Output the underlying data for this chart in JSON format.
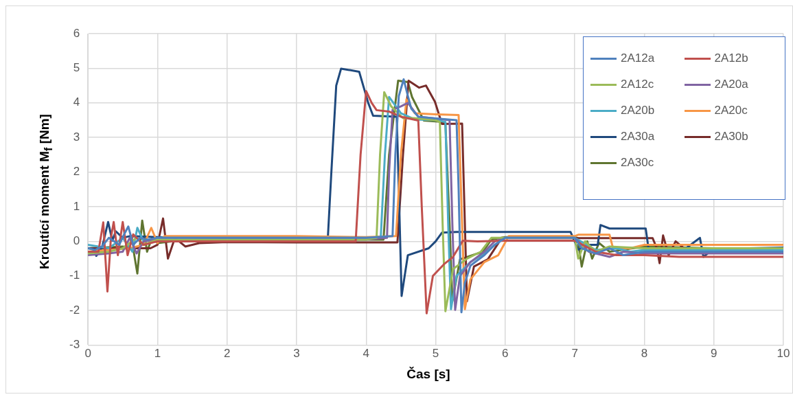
{
  "chart_data": {
    "type": "line",
    "xlabel": "Čas [s]",
    "ylabel": "Kroutící moment M$_{f}$ [Nm]",
    "xlim": [
      0,
      10
    ],
    "xticks": [
      0,
      1,
      2,
      3,
      4,
      5,
      6,
      7,
      8,
      9,
      10
    ],
    "ylim": [
      -3,
      6
    ],
    "yticks": [
      -3,
      -2,
      -1,
      0,
      1,
      2,
      3,
      4,
      5,
      6
    ],
    "grid": true,
    "legend": "top right",
    "marker": "none",
    "line_style": "solid",
    "series": [
      {
        "name": "2A12a",
        "color": "#4f81bd",
        "x": [
          0,
          0.1,
          0.2,
          0.3,
          0.45,
          0.52,
          0.58,
          0.65,
          0.75,
          0.85,
          1.0,
          1.5,
          2,
          3,
          4,
          4.38,
          4.42,
          4.47,
          4.54,
          4.6,
          4.65,
          4.75,
          5.0,
          5.3,
          5.33,
          5.37,
          5.42,
          5.5,
          5.7,
          5.85,
          6,
          7,
          7.1,
          7.3,
          7.5,
          7.7,
          8,
          8.5,
          9,
          9.5,
          10
        ],
        "values": [
          -0.2,
          -0.25,
          -0.15,
          0.1,
          -0.1,
          0.2,
          0.43,
          -0.1,
          0.1,
          0.05,
          0.1,
          0.1,
          0.1,
          0.1,
          0.1,
          0.15,
          2.5,
          4.2,
          4.68,
          4.2,
          3.83,
          3.6,
          3.55,
          3.5,
          1.5,
          -2.05,
          -1.2,
          -0.7,
          -0.4,
          -0.1,
          0.1,
          0.1,
          -0.2,
          -0.35,
          -0.2,
          -0.4,
          -0.3,
          -0.3,
          -0.3,
          -0.3,
          -0.3
        ]
      },
      {
        "name": "2A12b",
        "color": "#c0504d",
        "x": [
          0,
          0.15,
          0.22,
          0.28,
          0.33,
          0.37,
          0.43,
          0.5,
          0.57,
          0.65,
          0.8,
          1.0,
          1.5,
          2,
          3,
          3.85,
          3.92,
          4.0,
          4.08,
          4.15,
          4.33,
          4.5,
          4.75,
          4.8,
          4.87,
          4.96,
          5.12,
          5.25,
          5.39,
          5.6,
          6,
          7,
          7.3,
          7.6,
          8,
          8.5,
          9,
          9.5,
          10
        ],
        "values": [
          -0.3,
          -0.3,
          0.55,
          -1.45,
          0.1,
          0.56,
          -0.4,
          0.56,
          -0.4,
          0.2,
          -0.1,
          0.0,
          0.0,
          0.0,
          0.0,
          0.0,
          2.5,
          4.34,
          4.0,
          3.79,
          3.75,
          3.6,
          3.49,
          1.0,
          -2.08,
          -1.0,
          -0.66,
          -0.45,
          0.02,
          0.0,
          0.02,
          0.02,
          -0.3,
          -0.4,
          -0.4,
          -0.45,
          -0.45,
          -0.45,
          -0.45
        ]
      },
      {
        "name": "2A12c",
        "color": "#9bbb59",
        "x": [
          0,
          0.3,
          0.5,
          0.7,
          0.8,
          1.0,
          2,
          3,
          4,
          4.15,
          4.2,
          4.26,
          4.36,
          4.53,
          4.69,
          5.0,
          5.06,
          5.1,
          5.14,
          5.25,
          5.45,
          5.65,
          5.8,
          6,
          7,
          7.05,
          7.15,
          7.3,
          7.5,
          8,
          9,
          10
        ],
        "values": [
          -0.35,
          -0.3,
          -0.2,
          0.1,
          -0.1,
          0.05,
          0.05,
          0.05,
          0.05,
          0.1,
          2.5,
          4.31,
          3.9,
          3.56,
          3.56,
          3.5,
          3.45,
          0.5,
          -2.02,
          -0.8,
          -0.5,
          -0.3,
          0.1,
          0.1,
          0.1,
          -0.5,
          0.0,
          -0.3,
          -0.15,
          -0.2,
          -0.2,
          -0.2
        ]
      },
      {
        "name": "2A20a",
        "color": "#8064a2",
        "x": [
          0,
          0.3,
          0.5,
          0.6,
          0.7,
          0.8,
          1.0,
          2,
          3,
          4,
          4.3,
          4.33,
          4.38,
          4.5,
          4.6,
          4.75,
          5.0,
          5.2,
          5.24,
          5.28,
          5.35,
          5.5,
          5.7,
          5.85,
          6,
          7,
          7.2,
          7.5,
          7.7,
          8,
          9,
          10
        ],
        "values": [
          -0.4,
          -0.35,
          -0.3,
          0.1,
          -0.35,
          0.0,
          0.05,
          0.05,
          0.05,
          0.05,
          0.1,
          2.0,
          3.8,
          3.9,
          4.0,
          3.6,
          3.55,
          3.5,
          0.5,
          -1.98,
          -1.0,
          -0.6,
          -0.3,
          0.0,
          0.1,
          0.1,
          -0.3,
          -0.45,
          -0.3,
          -0.35,
          -0.35,
          -0.35
        ]
      },
      {
        "name": "2A20b",
        "color": "#4bacc6",
        "x": [
          0,
          0.3,
          0.5,
          0.64,
          0.71,
          0.8,
          1.0,
          2,
          3,
          4,
          4.21,
          4.27,
          4.33,
          4.5,
          4.7,
          5.0,
          5.14,
          5.18,
          5.22,
          5.3,
          5.5,
          5.7,
          5.85,
          6,
          7,
          7.3,
          7.6,
          7.8,
          8,
          9,
          10
        ],
        "values": [
          -0.1,
          -0.2,
          0.1,
          -0.3,
          0.39,
          0.0,
          0.1,
          0.1,
          0.1,
          0.1,
          0.1,
          2.5,
          4.17,
          3.7,
          3.52,
          3.5,
          3.45,
          0.5,
          -1.96,
          -1.0,
          -0.6,
          -0.35,
          -0.1,
          0.1,
          0.1,
          -0.25,
          -0.2,
          -0.3,
          -0.25,
          -0.25,
          -0.25
        ]
      },
      {
        "name": "2A20c",
        "color": "#f79646",
        "x": [
          0,
          0.3,
          0.6,
          0.8,
          0.91,
          1.0,
          1.1,
          2,
          3,
          4,
          4.43,
          4.5,
          4.58,
          4.7,
          5.0,
          5.33,
          5.38,
          5.42,
          5.5,
          5.7,
          5.9,
          6.05,
          7,
          7.05,
          7.5,
          7.55,
          7.8,
          8,
          9,
          10
        ],
        "values": [
          -0.3,
          -0.25,
          -0.2,
          -0.1,
          0.39,
          -0.05,
          0.15,
          0.15,
          0.15,
          0.12,
          0.15,
          2.5,
          4.1,
          3.7,
          3.67,
          3.65,
          0.5,
          -1.96,
          -1.1,
          -0.6,
          -0.4,
          0.15,
          0.15,
          0.19,
          0.19,
          -0.2,
          -0.2,
          -0.1,
          -0.1,
          -0.1
        ]
      },
      {
        "name": "2A30a",
        "color": "#1f497d",
        "x": [
          0,
          0.08,
          0.12,
          0.2,
          0.29,
          0.35,
          0.4,
          0.5,
          0.6,
          1.0,
          2,
          3,
          3.45,
          3.5,
          3.57,
          3.64,
          3.9,
          4.03,
          4.1,
          4.44,
          4.47,
          4.51,
          4.6,
          4.9,
          5.0,
          5.09,
          5.3,
          6,
          6.94,
          7.05,
          7.2,
          7.33,
          7.37,
          7.5,
          8.02,
          8.06,
          8.3,
          8.6,
          8.8,
          8.85,
          9,
          9.5,
          10
        ],
        "values": [
          -0.2,
          -0.22,
          -0.42,
          -0.2,
          0.56,
          0.02,
          0.29,
          0.1,
          0.15,
          0.12,
          0.1,
          0.1,
          0.12,
          2.0,
          4.5,
          4.99,
          4.9,
          4.0,
          3.63,
          3.6,
          1.5,
          -1.58,
          -0.4,
          -0.2,
          0.0,
          0.25,
          0.27,
          0.27,
          0.27,
          -0.24,
          -0.1,
          -0.1,
          0.47,
          0.37,
          0.37,
          -0.2,
          -0.3,
          -0.2,
          0.1,
          -0.45,
          -0.2,
          -0.2,
          -0.18
        ]
      },
      {
        "name": "2A30b",
        "color": "#772c2a",
        "x": [
          0,
          0.5,
          0.9,
          1.0,
          1.08,
          1.15,
          1.25,
          1.4,
          1.6,
          2,
          3,
          4,
          4.45,
          4.53,
          4.61,
          4.76,
          4.86,
          4.99,
          5.09,
          5.38,
          5.42,
          5.45,
          5.55,
          5.75,
          5.95,
          6.05,
          7,
          8.12,
          8.18,
          8.22,
          8.27,
          8.35,
          8.45,
          8.6,
          9,
          10
        ],
        "values": [
          -0.2,
          -0.2,
          -0.2,
          -0.1,
          0.66,
          -0.5,
          0.1,
          -0.15,
          -0.05,
          -0.02,
          -0.03,
          -0.03,
          -0.03,
          2.5,
          4.64,
          4.44,
          4.5,
          4.03,
          3.39,
          3.4,
          0.5,
          -1.73,
          -0.73,
          -0.52,
          0.1,
          0.09,
          0.09,
          0.09,
          -0.2,
          -0.63,
          0.17,
          -0.4,
          0.0,
          -0.25,
          -0.2,
          -0.2
        ]
      },
      {
        "name": "2A30c",
        "color": "#5f7530",
        "x": [
          0,
          0.5,
          0.65,
          0.71,
          0.78,
          0.85,
          0.92,
          1.0,
          1.2,
          2,
          3,
          4,
          4.25,
          4.33,
          4.46,
          4.6,
          4.66,
          4.83,
          5.1,
          5.14,
          5.2,
          5.24,
          5.35,
          5.68,
          5.8,
          6,
          7,
          7.04,
          7.1,
          7.18,
          7.25,
          7.35,
          7.5,
          8,
          9,
          10
        ],
        "values": [
          -0.2,
          -0.15,
          -0.2,
          -0.93,
          0.6,
          -0.3,
          0.1,
          -0.05,
          0.0,
          0.0,
          0.05,
          0.05,
          0.05,
          2.5,
          4.64,
          4.6,
          4.17,
          3.49,
          3.45,
          3.4,
          0.5,
          -1.73,
          -0.52,
          -0.3,
          0.05,
          0.12,
          0.12,
          0.1,
          -0.73,
          0.0,
          -0.5,
          -0.05,
          -0.3,
          -0.15,
          -0.2,
          -0.22
        ]
      }
    ]
  }
}
